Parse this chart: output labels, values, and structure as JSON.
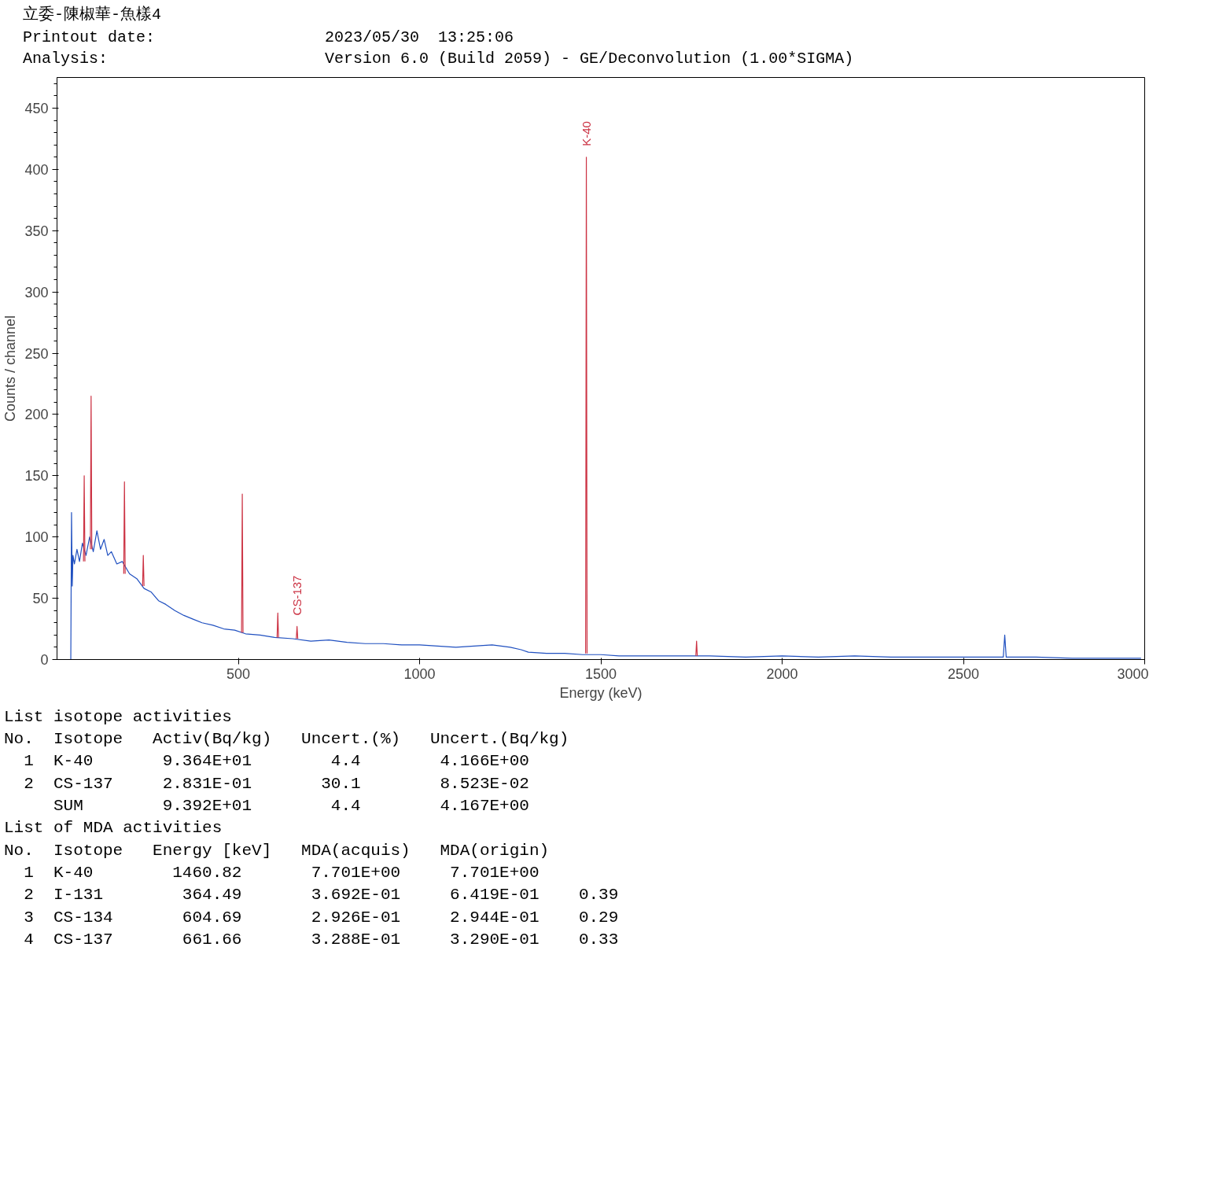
{
  "chart_data": {
    "type": "line",
    "title": "立委-陳椒華-魚樣4",
    "xlabel": "Energy (keV)",
    "ylabel": "Counts / channel",
    "xlim": [
      0,
      3000
    ],
    "ylim": [
      0,
      475
    ],
    "xticks": [
      500,
      1000,
      1500,
      2000,
      2500,
      3000
    ],
    "yticks": [
      0,
      50,
      100,
      150,
      200,
      250,
      300,
      350,
      400,
      450
    ],
    "grid": false,
    "line_style": "solid",
    "marker": "none",
    "series": [
      {
        "color": "#2050c0",
        "x": [
          38,
          40,
          42,
          44,
          48,
          55,
          62,
          70,
          80,
          90,
          100,
          110,
          120,
          130,
          140,
          150,
          165,
          180,
          200,
          220,
          240,
          260,
          280,
          300,
          325,
          350,
          375,
          400,
          430,
          460,
          490,
          520,
          560,
          600,
          650,
          700,
          750,
          800,
          850,
          900,
          950,
          1000,
          1050,
          1100,
          1150,
          1200,
          1250,
          1280,
          1300,
          1350,
          1400,
          1450,
          1500,
          1550,
          1600,
          1700,
          1800,
          1900,
          2000,
          2100,
          2200,
          2300,
          2400,
          2500,
          2600,
          2610,
          2614,
          2618,
          2700,
          2800,
          2900,
          2990
        ],
        "values": [
          0,
          120,
          60,
          85,
          78,
          90,
          80,
          95,
          85,
          100,
          88,
          105,
          90,
          98,
          85,
          88,
          78,
          80,
          70,
          66,
          58,
          55,
          48,
          45,
          40,
          36,
          33,
          30,
          28,
          25,
          24,
          21,
          20,
          18,
          17,
          15,
          16,
          14,
          13,
          13,
          12,
          12,
          11,
          10,
          11,
          12,
          10,
          8,
          6,
          5,
          5,
          4,
          4,
          3,
          3,
          3,
          3,
          2,
          3,
          2,
          3,
          2,
          2,
          2,
          2,
          2,
          20,
          2,
          2,
          1,
          1,
          1
        ]
      },
      {
        "color": "#cc3344",
        "x": [
          73,
          75,
          77,
          null,
          92,
          94,
          96,
          null,
          184,
          186,
          188,
          null,
          236,
          238,
          240,
          null,
          509,
          511,
          513,
          null,
          607,
          609,
          611,
          null,
          660,
          662,
          664,
          null,
          1458,
          1460,
          1462,
          null,
          1762,
          1764,
          1766
        ],
        "values": [
          80,
          150,
          80,
          null,
          90,
          215,
          90,
          null,
          70,
          145,
          70,
          null,
          60,
          85,
          60,
          null,
          22,
          135,
          22,
          null,
          18,
          38,
          18,
          null,
          17,
          27,
          17,
          null,
          5,
          410,
          5,
          null,
          3,
          15,
          3
        ]
      }
    ],
    "annotations": [
      {
        "text": "K-40",
        "x": 1460,
        "y": 410
      },
      {
        "text": "CS-137",
        "x": 662,
        "y": 27
      },
      "Printout date:                  2023/05/30  13:25:06",
      "Analysis:                       Version 6.0 (Build 2059) - GE/Deconvolution (1.00*SIGMA)",
      "List isotope activities",
      "No.  Isotope   Activ(Bq/kg)   Uncert.(%)   Uncert.(Bq/kg)",
      "  1  K-40       9.364E+01        4.4        4.166E+00",
      "  2  CS-137     2.831E-01       30.1        8.523E-02",
      "     SUM        9.392E+01        4.4        4.167E+00",
      "List of MDA activities",
      "No.  Isotope   Energy [keV]   MDA(acquis)   MDA(origin)",
      "  1  K-40        1460.82       7.701E+00     7.701E+00",
      "  2  I-131        364.49       3.692E-01     6.419E-01    0.39",
      "  3  CS-134       604.69       2.926E-01     2.944E-01    0.29",
      "  4  CS-137       661.66       3.288E-01     3.290E-01    0.33"
    ]
  }
}
